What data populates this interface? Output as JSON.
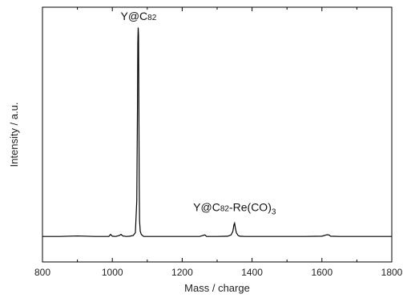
{
  "chart_data": {
    "type": "line",
    "xlabel": "Mass / charge",
    "ylabel": "Intensity / a.u.",
    "xlim": [
      800,
      1800
    ],
    "ylim": [
      0,
      100
    ],
    "xticks": [
      "800",
      "1000",
      "1200",
      "1400",
      "1600",
      "1800"
    ],
    "grid": false,
    "legend": "none",
    "series": [
      {
        "color": "#000000",
        "x": [
          800,
          850,
          900,
          950,
          990,
          995,
          1000,
          1010,
          1020,
          1025,
          1030,
          1040,
          1050,
          1060,
          1066,
          1070,
          1072,
          1073,
          1074,
          1075,
          1076,
          1077,
          1078,
          1080,
          1083,
          1087,
          1090,
          1100,
          1150,
          1200,
          1250,
          1262,
          1265,
          1270,
          1300,
          1330,
          1340,
          1345,
          1348,
          1350,
          1352,
          1355,
          1360,
          1365,
          1380,
          1450,
          1500,
          1550,
          1600,
          1615,
          1620,
          1625,
          1650,
          1700,
          1750,
          1800
        ],
        "y": [
          10,
          10,
          10.2,
          10,
          10,
          10.8,
          10.1,
          10,
          10.4,
          10.8,
          10.2,
          10,
          10.1,
          10.4,
          11.5,
          24,
          60,
          86,
          92,
          89,
          60,
          30,
          16,
          12,
          10.8,
          10.3,
          10,
          10,
          10,
          10,
          10,
          10.5,
          10.6,
          10,
          10,
          10.1,
          10.6,
          12,
          14.5,
          15.2,
          13.5,
          11.5,
          10.4,
          10.1,
          10,
          10,
          10,
          10,
          10.1,
          10.7,
          10.6,
          10.1,
          10,
          10,
          10,
          10
        ]
      }
    ],
    "annotations": [
      {
        "main": "Y@C",
        "sub": "82",
        "tail": "",
        "x": 1075,
        "y": 95
      },
      {
        "main": "Y@C",
        "sub": "82",
        "tail": "-Re(CO)",
        "sub2": "3",
        "x": 1350,
        "y": 20
      }
    ]
  }
}
